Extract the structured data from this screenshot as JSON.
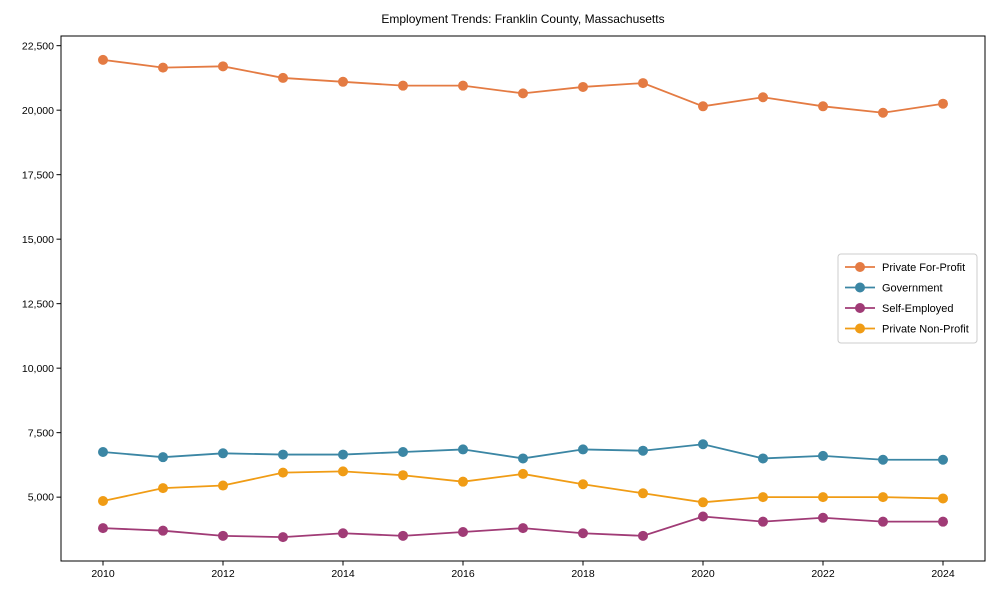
{
  "chart_data": {
    "type": "line",
    "title": "Employment Trends: Franklin County, Massachusetts",
    "xlabel": "",
    "ylabel": "",
    "grid": false,
    "legend_position": "center-right",
    "x": [
      2010,
      2011,
      2012,
      2013,
      2014,
      2015,
      2016,
      2017,
      2018,
      2019,
      2020,
      2021,
      2022,
      2023,
      2024
    ],
    "series": [
      {
        "name": "Private For-Profit",
        "color": "#e47b43",
        "values": [
          21950,
          21650,
          21700,
          21250,
          21100,
          20950,
          20950,
          20650,
          20900,
          21050,
          20150,
          20500,
          20150,
          19900,
          20250
        ]
      },
      {
        "name": "Government",
        "color": "#3b86a4",
        "values": [
          6750,
          6550,
          6700,
          6650,
          6650,
          6750,
          6850,
          6500,
          6850,
          6800,
          7050,
          6500,
          6600,
          6450,
          6450
        ]
      },
      {
        "name": "Self-Employed",
        "color": "#a03b76",
        "values": [
          3800,
          3700,
          3500,
          3450,
          3600,
          3500,
          3650,
          3800,
          3600,
          3500,
          4250,
          4050,
          4200,
          4050,
          4050
        ]
      },
      {
        "name": "Private Non-Profit",
        "color": "#f09c15",
        "values": [
          4850,
          5350,
          5450,
          5950,
          6000,
          5850,
          5600,
          5900,
          5500,
          5150,
          4800,
          5000,
          5000,
          5000,
          4950
        ]
      }
    ],
    "xlim": [
      2009.3,
      2024.7
    ],
    "ylim": [
      2525,
      22875
    ],
    "xtick_values": [
      2010,
      2012,
      2014,
      2016,
      2018,
      2020,
      2022,
      2024
    ],
    "xtick_labels": [
      "2010",
      "2012",
      "2014",
      "2016",
      "2018",
      "2020",
      "2022",
      "2024"
    ],
    "ytick_values": [
      5000,
      7500,
      10000,
      12500,
      15000,
      17500,
      20000,
      22500
    ],
    "ytick_labels": [
      "5,000",
      "7,500",
      "10,000",
      "12,500",
      "15,000",
      "17,500",
      "20,000",
      "22,500"
    ],
    "axis_color": "#000000",
    "legend_border_color": "#cccccc",
    "legend_bg_color": "#ffffff"
  }
}
